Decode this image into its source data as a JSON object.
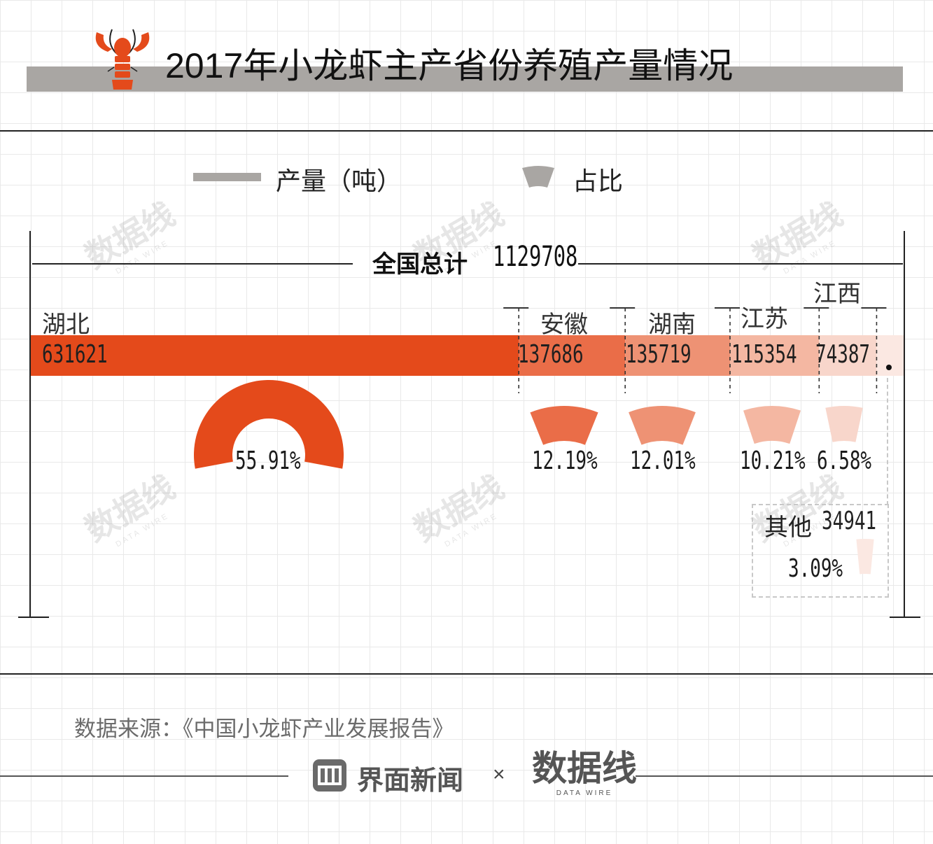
{
  "header": {
    "title": "2017年小龙虾主产省份养殖产量情况"
  },
  "legend": {
    "production_label": "产量（吨）",
    "share_label": "占比"
  },
  "total": {
    "label": "全国总计",
    "value": "1129708"
  },
  "colors": {
    "accent": "#e44a1b",
    "anhui": "#ea6d48",
    "hunan": "#ee9274",
    "jiangsu": "#f4b7a2",
    "jiangxi": "#f8d6cb",
    "other": "#fbe8e2",
    "grey": "#a9a6a3"
  },
  "chart_data": {
    "type": "bar",
    "title": "2017年小龙虾主产省份养殖产量情况",
    "unit": "吨",
    "total": 1129708,
    "categories": [
      "湖北",
      "安徽",
      "湖南",
      "江苏",
      "江西",
      "其他"
    ],
    "values": [
      631621,
      137686,
      135719,
      115354,
      74387,
      34941
    ],
    "shares": [
      "55.91%",
      "12.19%",
      "12.01%",
      "10.21%",
      "6.58%",
      "3.09%"
    ],
    "series": [
      {
        "name": "产量（吨）",
        "values": [
          631621,
          137686,
          135719,
          115354,
          74387,
          34941
        ]
      }
    ],
    "share_series": {
      "name": "占比",
      "values": [
        55.91,
        12.19,
        12.01,
        10.21,
        6.58,
        3.09
      ]
    }
  },
  "other": {
    "label": "其他",
    "value": "34941",
    "share": "3.09%"
  },
  "footer": {
    "source": "数据来源：《中国小龙虾产业发展报告》",
    "brand": "界面新闻",
    "times": "×",
    "watermark": "数据线",
    "watermark_sub": "DATA WIRE"
  }
}
